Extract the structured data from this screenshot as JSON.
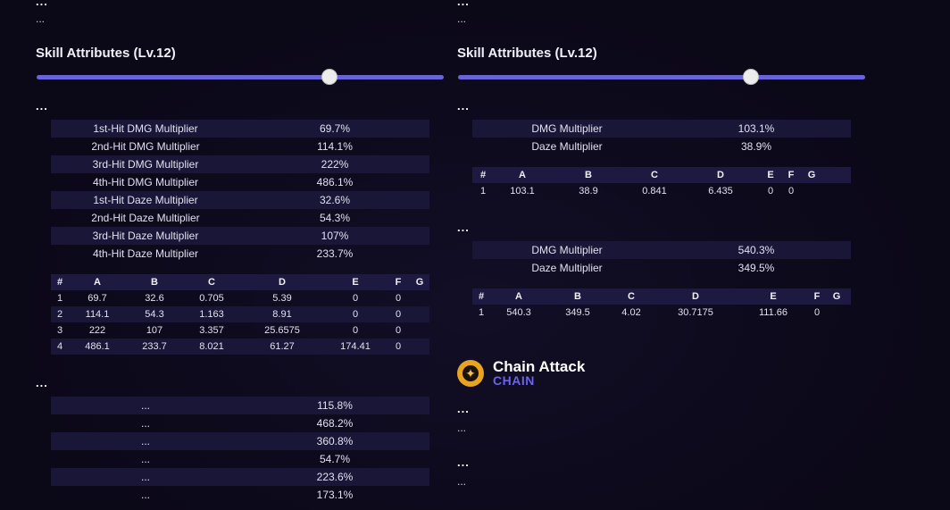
{
  "left": {
    "top_ellipsis_bold": "...",
    "top_ellipsis_small": "...",
    "heading": "Skill Attributes (Lv.12)",
    "slider_level": 0.72,
    "section1_label": "...",
    "attributes": [
      {
        "label": "1st-Hit DMG Multiplier",
        "value": "69.7%"
      },
      {
        "label": "2nd-Hit DMG Multiplier",
        "value": "114.1%"
      },
      {
        "label": "3rd-Hit DMG Multiplier",
        "value": "222%"
      },
      {
        "label": "4th-Hit DMG Multiplier",
        "value": "486.1%"
      },
      {
        "label": "1st-Hit Daze Multiplier",
        "value": "32.6%"
      },
      {
        "label": "2nd-Hit Daze Multiplier",
        "value": "54.3%"
      },
      {
        "label": "3rd-Hit Daze Multiplier",
        "value": "107%"
      },
      {
        "label": "4th-Hit Daze Multiplier",
        "value": "233.7%"
      }
    ],
    "grid_headers": [
      "#",
      "A",
      "B",
      "C",
      "D",
      "E",
      "F",
      "G"
    ],
    "grid_rows": [
      [
        "1",
        "69.7",
        "32.6",
        "0.705",
        "5.39",
        "0",
        "0",
        ""
      ],
      [
        "2",
        "114.1",
        "54.3",
        "1.163",
        "8.91",
        "0",
        "0",
        ""
      ],
      [
        "3",
        "222",
        "107",
        "3.357",
        "25.6575",
        "0",
        "0",
        ""
      ],
      [
        "4",
        "486.1",
        "233.7",
        "8.021",
        "61.27",
        "174.41",
        "0",
        ""
      ]
    ],
    "section2_label": "...",
    "attributes2": [
      {
        "label": "...",
        "value": "115.8%"
      },
      {
        "label": "...",
        "value": "468.2%"
      },
      {
        "label": "...",
        "value": "360.8%"
      },
      {
        "label": "...",
        "value": "54.7%"
      },
      {
        "label": "...",
        "value": "223.6%"
      },
      {
        "label": "...",
        "value": "173.1%"
      }
    ]
  },
  "right": {
    "top_ellipsis_bold": "...",
    "top_ellipsis_small": "...",
    "heading": "Skill Attributes (Lv.12)",
    "slider_level": 0.72,
    "section1_label": "...",
    "attributes1": [
      {
        "label": "DMG Multiplier",
        "value": "103.1%"
      },
      {
        "label": "Daze Multiplier",
        "value": "38.9%"
      }
    ],
    "grid1_headers": [
      "#",
      "A",
      "B",
      "C",
      "D",
      "E",
      "F",
      "G"
    ],
    "grid1_rows": [
      [
        "1",
        "103.1",
        "38.9",
        "0.841",
        "6.435",
        "0",
        "0",
        ""
      ]
    ],
    "section2_label": "...",
    "attributes2": [
      {
        "label": "DMG Multiplier",
        "value": "540.3%"
      },
      {
        "label": "Daze Multiplier",
        "value": "349.5%"
      }
    ],
    "grid2_headers": [
      "#",
      "A",
      "B",
      "C",
      "D",
      "E",
      "F",
      "G"
    ],
    "grid2_rows": [
      [
        "1",
        "540.3",
        "349.5",
        "4.02",
        "30.7175",
        "111.66",
        "0",
        ""
      ]
    ],
    "chain_title": "Chain Attack",
    "chain_sub": "CHAIN",
    "chain_ellipsis1_bold": "...",
    "chain_ellipsis1_small": "...",
    "chain_ellipsis2_bold": "...",
    "chain_ellipsis2_small": "..."
  },
  "colors": {
    "accent": "#6a63d8",
    "chain_accent": "#6b63e8",
    "row_alt": "#1a1637",
    "background": "#0b0818"
  }
}
